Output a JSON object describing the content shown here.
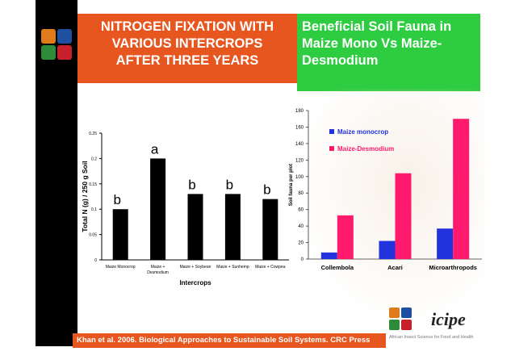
{
  "titles": {
    "left": [
      "NITROGEN FIXATION WITH",
      "VARIOUS INTERCROPS",
      "AFTER THREE YEARS"
    ],
    "right": [
      "Beneficial Soil Fauna in",
      "Maize Mono Vs Maize-",
      "Desmodium"
    ]
  },
  "footer": "Khan et al. 2006. Biological Approaches to Sustainable Soil Systems. CRC Press",
  "brand": {
    "name": "icipe",
    "tagline": "African Insect Science for Food and Health"
  },
  "colors": {
    "sidebar": "#000000",
    "left_title_bg": "#e8561f",
    "right_title_bg": "#2ecc40",
    "bar_black": "#000000",
    "maize_monocrop": "#2233dd",
    "maize_desmodium": "#ff1a6e"
  },
  "chart_data": [
    {
      "type": "bar",
      "categories": [
        [
          "Maize Monocrop"
        ],
        [
          "Maize +",
          "Desmodium"
        ],
        [
          "Maize + Soybean"
        ],
        [
          "Maize + Sunhemp"
        ],
        [
          "Maize + Cowpea"
        ]
      ],
      "values": [
        0.1,
        0.2,
        0.13,
        0.13,
        0.12
      ],
      "bar_labels": [
        "b",
        "a",
        "b",
        "b",
        "b"
      ],
      "xlabel": "Intercrops",
      "ylabel": "Total N (g) / 250 g Soil",
      "ylim": [
        0,
        0.25
      ],
      "yticks": [
        "0",
        "0.05",
        "0.1",
        "0.15",
        "0.2",
        "0.25"
      ],
      "ytick_values": [
        0,
        0.05,
        0.1,
        0.15,
        0.2,
        0.25
      ],
      "grid": false
    },
    {
      "type": "bar",
      "categories": [
        "Collembola",
        "Acari",
        "Microarthropods"
      ],
      "series": [
        {
          "name": "Maize monocrop",
          "values": [
            8,
            22,
            37
          ]
        },
        {
          "name": "Maize-Desmodium",
          "values": [
            53,
            104,
            170
          ]
        }
      ],
      "ylabel": "Soil fauna per plot",
      "ylim": [
        0,
        180
      ],
      "yticks": [
        "0",
        "20",
        "40",
        "60",
        "80",
        "100",
        "120",
        "140",
        "160",
        "180"
      ],
      "ytick_values": [
        0,
        20,
        40,
        60,
        80,
        100,
        120,
        140,
        160,
        180
      ],
      "legend": "top-right",
      "grid": false
    }
  ]
}
